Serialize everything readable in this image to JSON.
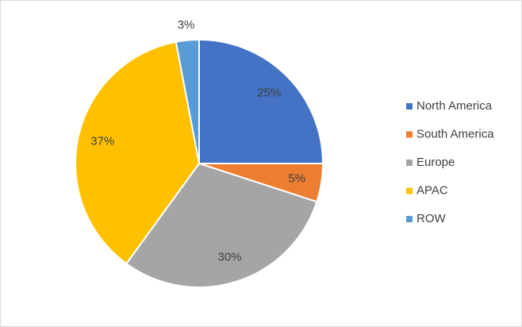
{
  "chart_data": {
    "type": "pie",
    "categories": [
      "North America",
      "South America",
      "Europe",
      "APAC",
      "ROW"
    ],
    "values": [
      25,
      5,
      30,
      37,
      3
    ],
    "value_labels": [
      "25%",
      "5%",
      "30%",
      "37%",
      "3%"
    ],
    "colors": [
      "#4472c4",
      "#ed7d31",
      "#a5a5a5",
      "#ffc000",
      "#5b9bd5"
    ],
    "legend": "right"
  }
}
